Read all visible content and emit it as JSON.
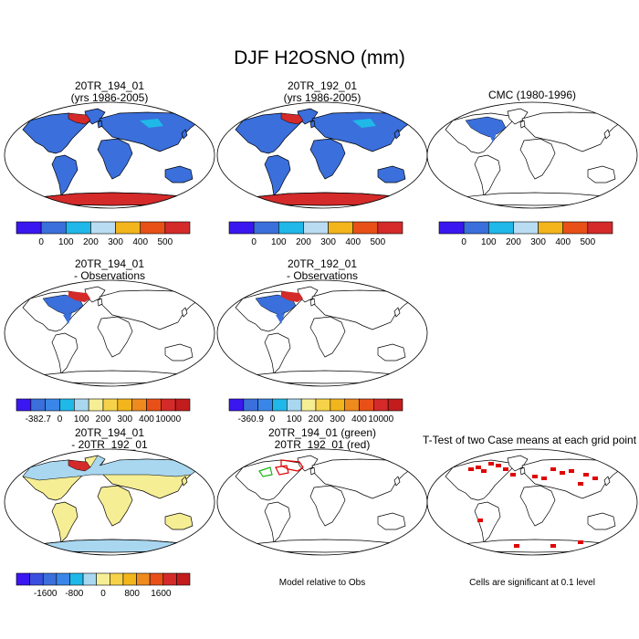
{
  "title": "DJF H2OSNO (mm)",
  "colors": {
    "land": "#3a6fdc",
    "ocean": "#ffffff",
    "coast": "#000000",
    "snow_high": "#d42a2a",
    "diff_land": "#f6ee95",
    "diff_snow": "#a9d7f0",
    "sig": "#e00000",
    "green": "#18b418"
  },
  "panels": [
    {
      "id": "p1",
      "title_lines": [
        "20TR_194_01",
        "(yrs 1986-2005)"
      ],
      "fill": "case",
      "colorbar": "cb_abs"
    },
    {
      "id": "p2",
      "title_lines": [
        "20TR_192_01",
        "(yrs 1986-2005)"
      ],
      "fill": "case",
      "colorbar": "cb_abs"
    },
    {
      "id": "p3",
      "title_lines": [
        "CMC (1980-1996)"
      ],
      "fill": "obs",
      "colorbar": "cb_abs"
    },
    {
      "id": "p4",
      "title_lines": [
        "20TR_194_01",
        "- Observations"
      ],
      "fill": "diff_obs",
      "colorbar": "cb_diff1"
    },
    {
      "id": "p5",
      "title_lines": [
        "20TR_192_01",
        "- Observations"
      ],
      "fill": "diff_obs",
      "colorbar": "cb_diff2"
    },
    {
      "id": "p7",
      "title_lines": [
        "20TR_194_01",
        "- 20TR_192_01"
      ],
      "fill": "diff_case",
      "colorbar": "cb_diff3"
    },
    {
      "id": "p8",
      "title_lines": [
        "20TR_194_01 (green)",
        "20TR_192_01 (red)"
      ],
      "fill": "outline",
      "note": "Model relative to Obs"
    },
    {
      "id": "p9",
      "title_lines": [
        "T-Test of two Case means at each grid point"
      ],
      "fill": "ttest",
      "note": "Cells are significant at 0.1 level"
    }
  ],
  "colorbars": {
    "cb_abs": {
      "colors": [
        "#3a17f0",
        "#3a6fdc",
        "#1fb8e8",
        "#b9dcf3",
        "#f2b51c",
        "#e85018",
        "#d42a2a"
      ],
      "labels": [
        "0",
        "100",
        "200",
        "300",
        "400",
        "500"
      ]
    },
    "cb_diff1": {
      "colors": [
        "#3a17f0",
        "#3a6fdc",
        "#3a86e8",
        "#1fb8e8",
        "#a9d7f0",
        "#f6ee95",
        "#f6d24a",
        "#f2b51c",
        "#ee8a1e",
        "#e85018",
        "#d42a2a",
        "#c21c1c"
      ],
      "labels": [
        "-382.7",
        "0",
        "100",
        "200",
        "300",
        "400",
        "10000"
      ]
    },
    "cb_diff2": {
      "colors": [
        "#3a17f0",
        "#3a6fdc",
        "#3a86e8",
        "#1fb8e8",
        "#a9d7f0",
        "#f6ee95",
        "#f6d24a",
        "#f2b51c",
        "#ee8a1e",
        "#e85018",
        "#d42a2a",
        "#c21c1c"
      ],
      "labels": [
        "-360.9",
        "0",
        "100",
        "200",
        "300",
        "400",
        "10000"
      ]
    },
    "cb_diff3": {
      "colors": [
        "#3a17f0",
        "#3a4fe0",
        "#3a6fdc",
        "#3a86e8",
        "#1fb8e8",
        "#a9d7f0",
        "#f6ee95",
        "#f6d24a",
        "#f2b51c",
        "#ee8a1e",
        "#e85018",
        "#d42a2a",
        "#c21c1c"
      ],
      "labels": [
        "-1600",
        "-800",
        "0",
        "800",
        "1600"
      ]
    }
  },
  "chart_data": {
    "type": "map",
    "title": "DJF H2OSNO (mm)",
    "projection": "robinson",
    "units": "mm",
    "panels": [
      {
        "title": "20TR_194_01 (yrs 1986-2005)",
        "colorbar_levels": [
          0,
          100,
          200,
          300,
          400,
          500
        ]
      },
      {
        "title": "20TR_192_01 (yrs 1986-2005)",
        "colorbar_levels": [
          0,
          100,
          200,
          300,
          400,
          500
        ]
      },
      {
        "title": "CMC (1980-1996)",
        "colorbar_levels": [
          0,
          100,
          200,
          300,
          400,
          500
        ]
      },
      {
        "title": "20TR_194_01 - Observations",
        "colorbar_labels": [
          "-382.7",
          "0",
          "100",
          "200",
          "300",
          "400",
          "10000"
        ]
      },
      {
        "title": "20TR_192_01 - Observations",
        "colorbar_labels": [
          "-360.9",
          "0",
          "100",
          "200",
          "300",
          "400",
          "10000"
        ]
      },
      {
        "title": "20TR_194_01 - 20TR_192_01",
        "colorbar_labels": [
          "-1600",
          "-800",
          "0",
          "800",
          "1600"
        ]
      },
      {
        "title": "20TR_194_01 (green) 20TR_192_01 (red)",
        "note": "Model relative to Obs"
      },
      {
        "title": "T-Test of two Case means at each grid point",
        "note": "Cells are significant at 0.1 level"
      }
    ]
  }
}
